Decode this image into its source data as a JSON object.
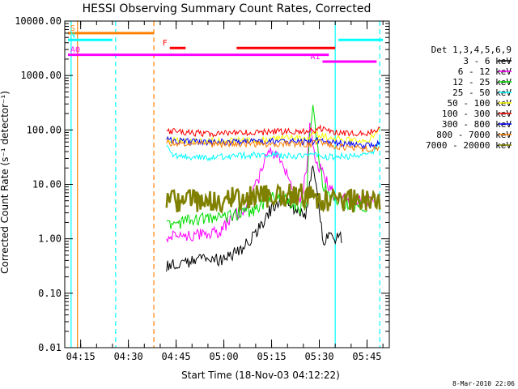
{
  "chart_data": {
    "type": "line",
    "title": "HESSI Observing Summary Count Rates, Corrected",
    "xlabel": "Start Time (18-Nov-03 04:12:22)",
    "ylabel": "Corrected Count Rate (s⁻¹ detector⁻¹)",
    "y_scale": "log",
    "ylim": [
      0.01,
      10000
    ],
    "xlim": [
      "04:10",
      "05:52"
    ],
    "x_ticks": [
      "04:15",
      "04:30",
      "04:45",
      "05:00",
      "05:15",
      "05:30",
      "05:45"
    ],
    "y_ticks": [
      "0.01",
      "0.10",
      "1.00",
      "10.00",
      "100.00",
      "1000.00",
      "10000.00"
    ],
    "legend_title": "Det 1,3,4,5,6,9",
    "legend_position": "right, outside plot",
    "series": [
      {
        "name": "3 - 6 keV",
        "color": "#000000",
        "x": [
          "04:42",
          "04:50",
          "05:00",
          "05:05",
          "05:10",
          "05:14",
          "05:17",
          "05:20",
          "05:24",
          "05:26",
          "05:27",
          "05:28",
          "05:29",
          "05:31",
          "05:32",
          "05:35",
          "05:37"
        ],
        "y": [
          0.33,
          0.38,
          0.42,
          0.6,
          1.2,
          3,
          5,
          4.5,
          3,
          3,
          12,
          25,
          12,
          1.0,
          1.0,
          1.0,
          1.0
        ]
      },
      {
        "name": "6 - 12 keV",
        "color": "#ff00ff",
        "x": [
          "04:42",
          "04:50",
          "04:58",
          "05:03",
          "05:07",
          "05:11",
          "05:13",
          "05:15",
          "05:18",
          "05:21",
          "05:24",
          "05:26",
          "05:27",
          "05:28",
          "05:30",
          "05:35",
          "05:40",
          "05:47"
        ],
        "y": [
          1.1,
          1.2,
          1.3,
          2.5,
          4,
          12,
          30,
          40,
          25,
          10,
          4,
          20,
          150,
          40,
          20,
          6,
          5,
          5
        ]
      },
      {
        "name": "12 - 25 keV",
        "color": "#00dd00",
        "x": [
          "04:42",
          "04:50",
          "05:00",
          "05:05",
          "05:10",
          "05:14",
          "05:17",
          "05:20",
          "05:24",
          "05:26",
          "05:27",
          "05:28",
          "05:29",
          "05:31",
          "05:35",
          "05:40",
          "05:45"
        ],
        "y": [
          1.8,
          2.2,
          2.5,
          3,
          3.5,
          5.5,
          6,
          5,
          3.5,
          5,
          100,
          250,
          80,
          10,
          5,
          4,
          4
        ]
      },
      {
        "name": "25 - 50 keV",
        "color": "#00ffff",
        "x": [
          "04:42",
          "04:44",
          "04:50",
          "05:00",
          "05:10",
          "05:20",
          "05:25",
          "05:28",
          "05:30",
          "05:35",
          "05:40",
          "05:45",
          "05:47",
          "05:49"
        ],
        "y": [
          50,
          35,
          30,
          32,
          35,
          34,
          32,
          40,
          33,
          32,
          33,
          35,
          40,
          60
        ]
      },
      {
        "name": "50 - 100 keV",
        "color": "#ffff00",
        "x": [
          "04:42",
          "04:50",
          "05:00",
          "05:10",
          "05:20",
          "05:27",
          "05:28",
          "05:30",
          "05:35",
          "05:40",
          "05:45",
          "05:47",
          "05:49"
        ],
        "y": [
          65,
          62,
          63,
          65,
          72,
          75,
          90,
          78,
          70,
          65,
          62,
          80,
          110
        ]
      },
      {
        "name": "100 - 300 keV",
        "color": "#ff0000",
        "x": [
          "04:42",
          "04:50",
          "05:00",
          "05:10",
          "05:20",
          "05:28",
          "05:30",
          "05:35",
          "05:40",
          "05:45",
          "05:49"
        ],
        "y": [
          95,
          88,
          85,
          90,
          95,
          95,
          110,
          90,
          85,
          85,
          110
        ]
      },
      {
        "name": "300 - 800 keV",
        "color": "#0000ff",
        "x": [
          "04:42",
          "04:50",
          "05:00",
          "05:10",
          "05:20",
          "05:28",
          "05:30",
          "05:35",
          "05:40",
          "05:45",
          "05:49"
        ],
        "y": [
          65,
          60,
          60,
          62,
          62,
          60,
          65,
          58,
          55,
          52,
          55
        ]
      },
      {
        "name": "800 - 7000 keV",
        "color": "#ff8000",
        "x": [
          "04:42",
          "04:50",
          "05:00",
          "05:10",
          "05:20",
          "05:28",
          "05:30",
          "05:35",
          "05:40",
          "05:45",
          "05:49"
        ],
        "y": [
          58,
          55,
          55,
          55,
          55,
          55,
          60,
          50,
          47,
          45,
          47
        ]
      },
      {
        "name": "7000 - 20000 keV",
        "color": "#808000",
        "x": [
          "04:42",
          "04:50",
          "05:00",
          "05:10",
          "05:20",
          "05:28",
          "05:30",
          "05:35",
          "05:40",
          "05:45",
          "05:49"
        ],
        "y": [
          5,
          5,
          5.2,
          6,
          6.5,
          6,
          5.5,
          5,
          5,
          5,
          5
        ]
      }
    ],
    "annotations": [
      {
        "label": "S",
        "color": "#ff8000",
        "x": [
          "04:11",
          "04:38"
        ],
        "y": 6000
      },
      {
        "label": "N",
        "color": "#00ffff",
        "x": [
          "04:11",
          "04:25"
        ],
        "y": 4500
      },
      {
        "label": "F",
        "color": "#ff0000",
        "x": [
          "04:43",
          "04:48"
        ],
        "y": 3200
      },
      {
        "label": "",
        "color": "#ff0000",
        "x": [
          "05:04",
          "05:35"
        ],
        "y": 3200
      },
      {
        "label": "A0",
        "color": "#ff00ff",
        "x": [
          "04:11",
          "05:33"
        ],
        "y": 2400
      },
      {
        "label": "A1",
        "color": "#ff00ff",
        "x": [
          "05:31",
          "05:48"
        ],
        "y": 1800
      },
      {
        "label": "",
        "color": "#00ffff",
        "x": [
          "05:36",
          "05:50"
        ],
        "y": 4500
      }
    ],
    "vlines": [
      {
        "x": "04:12",
        "color": "#00ffff",
        "style": "solid"
      },
      {
        "x": "04:14",
        "color": "#ff8000",
        "style": "solid"
      },
      {
        "x": "04:26",
        "color": "#00ffff",
        "style": "dashed"
      },
      {
        "x": "04:38",
        "color": "#ff8000",
        "style": "dashed"
      },
      {
        "x": "05:35",
        "color": "#00ffff",
        "style": "solid"
      },
      {
        "x": "05:49",
        "color": "#00ffff",
        "style": "dashed"
      }
    ],
    "footer_timestamp": "8-Mar-2010 22:06"
  }
}
